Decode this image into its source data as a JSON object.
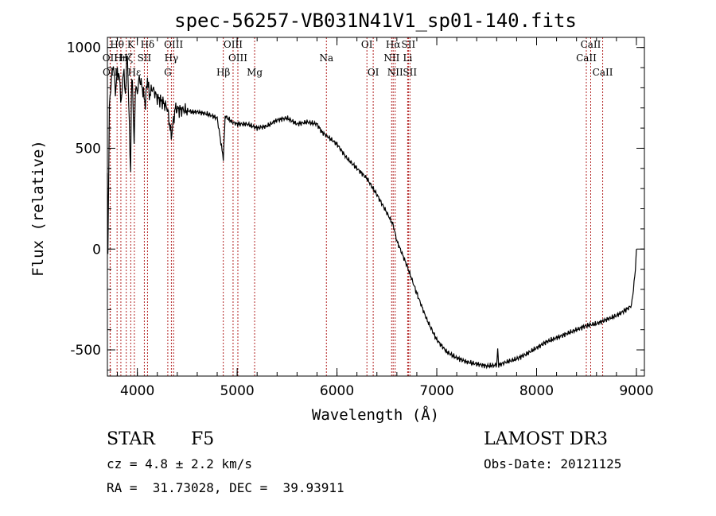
{
  "chart_data": {
    "type": "line",
    "title": "spec-56257-VB031N41V1_sp01-140.fits",
    "xlabel": "Wavelength (Å)",
    "ylabel": "Flux (relative)",
    "xlim": [
      3700,
      9080
    ],
    "ylim": [
      -630,
      1050
    ],
    "xticks": [
      4000,
      5000,
      6000,
      7000,
      8000,
      9000
    ],
    "yticks": [
      -500,
      0,
      500,
      1000
    ],
    "series": [
      {
        "name": "spectrum",
        "x": [
          3700,
          3705,
          3720,
          3740,
          3760,
          3780,
          3800,
          3820,
          3840,
          3860,
          3880,
          3900,
          3920,
          3933,
          3940,
          3950,
          3968,
          3980,
          4000,
          4020,
          4050,
          4080,
          4101,
          4120,
          4150,
          4200,
          4250,
          4300,
          4340,
          4380,
          4420,
          4480,
          4550,
          4600,
          4700,
          4800,
          4861,
          4880,
          4950,
          5000,
          5100,
          5200,
          5300,
          5400,
          5500,
          5600,
          5700,
          5800,
          5850,
          5900,
          6000,
          6100,
          6200,
          6300,
          6400,
          6500,
          6563,
          6600,
          6700,
          6800,
          6900,
          7000,
          7100,
          7200,
          7300,
          7400,
          7500,
          7600,
          7610,
          7620,
          7700,
          7800,
          7900,
          8000,
          8100,
          8200,
          8300,
          8400,
          8500,
          8600,
          8700,
          8800,
          8900,
          8950,
          8970,
          8990,
          9000
        ],
        "values": [
          350,
          0,
          700,
          850,
          920,
          780,
          880,
          850,
          720,
          900,
          770,
          980,
          600,
          380,
          750,
          860,
          500,
          800,
          780,
          850,
          800,
          720,
          850,
          760,
          800,
          750,
          730,
          700,
          560,
          700,
          690,
          690,
          680,
          680,
          670,
          650,
          450,
          660,
          630,
          620,
          620,
          600,
          610,
          640,
          650,
          620,
          630,
          620,
          580,
          560,
          520,
          450,
          400,
          350,
          270,
          180,
          120,
          40,
          -80,
          -220,
          -350,
          -450,
          -510,
          -540,
          -560,
          -570,
          -580,
          -575,
          -500,
          -575,
          -560,
          -545,
          -520,
          -490,
          -460,
          -440,
          -420,
          -400,
          -380,
          -370,
          -350,
          -330,
          -300,
          -280,
          -200,
          -100,
          0
        ]
      }
    ],
    "spectral_lines": [
      {
        "label": "Hθ",
        "wavelength": 3797,
        "row": 0
      },
      {
        "label": "OII",
        "wavelength": 3727,
        "row": 1
      },
      {
        "label": "OII",
        "wavelength": 3729,
        "row": 2
      },
      {
        "label": "Hη",
        "wavelength": 3835,
        "row": 1
      },
      {
        "label": "Hζ",
        "wavelength": 3889,
        "row": 1
      },
      {
        "label": "K",
        "wavelength": 3934,
        "row": 0
      },
      {
        "label": "Hε",
        "wavelength": 3970,
        "row": 2
      },
      {
        "label": "Hδ",
        "wavelength": 4102,
        "row": 0
      },
      {
        "label": "SII",
        "wavelength": 4070,
        "row": 1
      },
      {
        "label": "OIII",
        "wavelength": 4363,
        "row": 0
      },
      {
        "label": "Hγ",
        "wavelength": 4341,
        "row": 1
      },
      {
        "label": "G",
        "wavelength": 4305,
        "row": 2
      },
      {
        "label": "Hβ",
        "wavelength": 4861,
        "row": 2
      },
      {
        "label": "OIII",
        "wavelength": 4959,
        "row": 0
      },
      {
        "label": "OIII",
        "wavelength": 5007,
        "row": 1
      },
      {
        "label": "Mg",
        "wavelength": 5175,
        "row": 2
      },
      {
        "label": "Na",
        "wavelength": 5894,
        "row": 1
      },
      {
        "label": "OI",
        "wavelength": 6300,
        "row": 0
      },
      {
        "label": "OI",
        "wavelength": 6363,
        "row": 2
      },
      {
        "label": "Hα",
        "wavelength": 6563,
        "row": 0
      },
      {
        "label": "SII",
        "wavelength": 6716,
        "row": 0
      },
      {
        "label": "NII",
        "wavelength": 6548,
        "row": 1
      },
      {
        "label": "Li",
        "wavelength": 6708,
        "row": 1
      },
      {
        "label": "NII",
        "wavelength": 6583,
        "row": 2
      },
      {
        "label": "SII",
        "wavelength": 6731,
        "row": 2
      },
      {
        "label": "CaII",
        "wavelength": 8542,
        "row": 0
      },
      {
        "label": "CaII",
        "wavelength": 8498,
        "row": 1
      },
      {
        "label": "CaII",
        "wavelength": 8662,
        "row": 2
      }
    ]
  },
  "info": {
    "class_label": "STAR",
    "subclass": "F5",
    "survey": "LAMOST DR3",
    "cz": "cz = 4.8 ± 2.2 km/s",
    "obs_date": "Obs-Date: 20121125",
    "coords": "RA =  31.73028, DEC =  39.93911"
  },
  "colors": {
    "line_marker": "#b22222",
    "spectrum": "#000000"
  }
}
